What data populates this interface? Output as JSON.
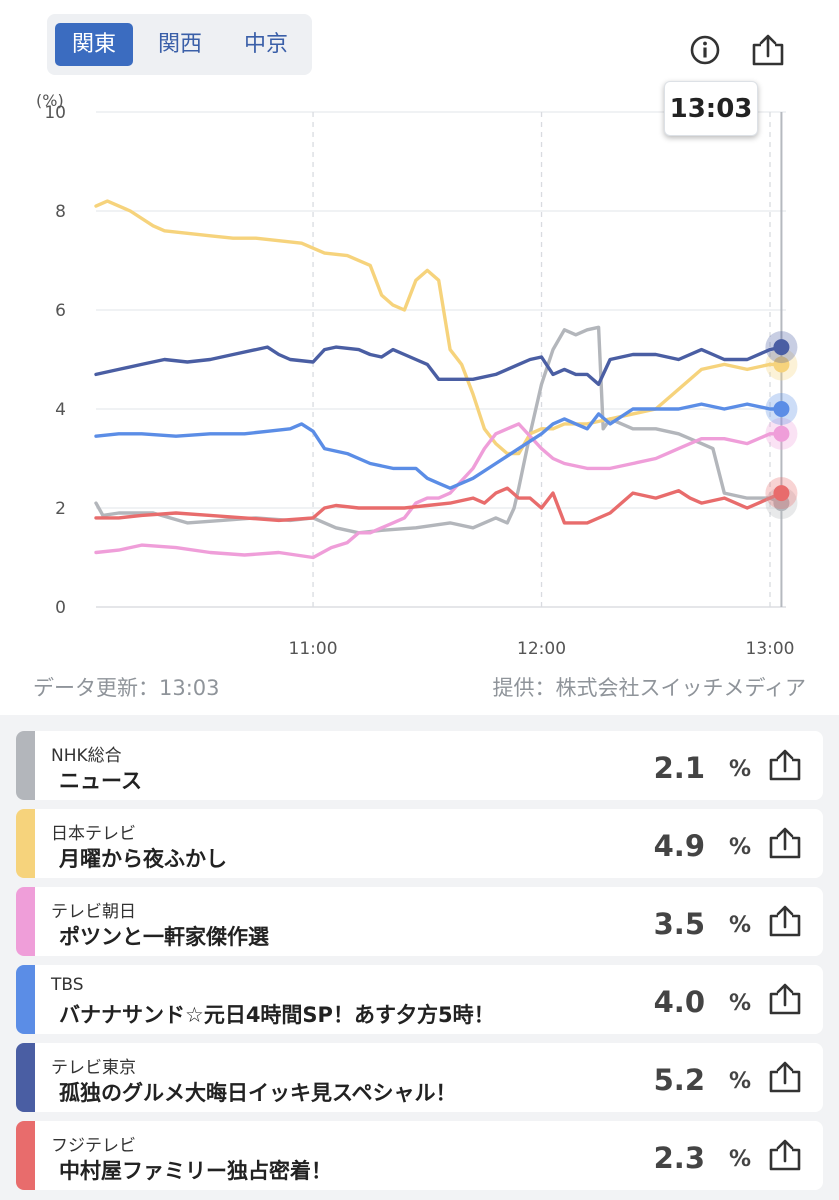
{
  "tabs": [
    {
      "label": "関東",
      "active": true
    },
    {
      "label": "関西",
      "active": false
    },
    {
      "label": "中京",
      "active": false
    }
  ],
  "toolbar": {
    "info_icon": "info-icon",
    "share_icon": "share-icon"
  },
  "tooltip": {
    "time": "13:03"
  },
  "footer": {
    "updated": "データ更新：13:03",
    "provider": "提供：株式会社スイッチメディア"
  },
  "chart_data": {
    "type": "line",
    "ylabel": "(%)",
    "ylim": [
      0,
      10
    ],
    "yticks": [
      "0",
      "2",
      "4",
      "6",
      "8",
      "10"
    ],
    "xlim": [
      10.05,
      13.07
    ],
    "xticks": [
      {
        "value": 11,
        "label": "11:00"
      },
      {
        "value": 12,
        "label": "12:00"
      },
      {
        "value": 13,
        "label": "13:00"
      }
    ],
    "grid": true,
    "cursor_x": 13.05,
    "series": [
      {
        "name": "NHK総合",
        "color": "#b3b6bb",
        "x": [
          10.05,
          10.08,
          10.15,
          10.3,
          10.45,
          10.6,
          10.75,
          10.9,
          11.0,
          11.1,
          11.2,
          11.3,
          11.45,
          11.6,
          11.7,
          11.8,
          11.85,
          11.88,
          11.9,
          11.95,
          12.0,
          12.05,
          12.1,
          12.15,
          12.2,
          12.25,
          12.27,
          12.3,
          12.4,
          12.5,
          12.6,
          12.7,
          12.75,
          12.8,
          12.9,
          13.0,
          13.05
        ],
        "values": [
          2.1,
          1.85,
          1.9,
          1.9,
          1.7,
          1.75,
          1.8,
          1.75,
          1.8,
          1.6,
          1.5,
          1.55,
          1.6,
          1.7,
          1.6,
          1.8,
          1.7,
          2.0,
          2.4,
          3.5,
          4.5,
          5.2,
          5.6,
          5.5,
          5.6,
          5.65,
          3.6,
          3.8,
          3.6,
          3.6,
          3.5,
          3.3,
          3.2,
          2.3,
          2.2,
          2.2,
          2.1
        ]
      },
      {
        "name": "日本テレビ",
        "color": "#f6d37c",
        "x": [
          10.05,
          10.1,
          10.2,
          10.3,
          10.35,
          10.45,
          10.55,
          10.65,
          10.75,
          10.85,
          10.95,
          11.05,
          11.15,
          11.25,
          11.3,
          11.35,
          11.4,
          11.45,
          11.5,
          11.55,
          11.6,
          11.65,
          11.7,
          11.75,
          11.8,
          11.85,
          11.9,
          11.95,
          12.0,
          12.05,
          12.1,
          12.2,
          12.3,
          12.5,
          12.7,
          12.8,
          12.9,
          13.0,
          13.05
        ],
        "values": [
          8.1,
          8.2,
          8.0,
          7.7,
          7.6,
          7.55,
          7.5,
          7.45,
          7.45,
          7.4,
          7.35,
          7.15,
          7.1,
          6.9,
          6.3,
          6.1,
          6.0,
          6.6,
          6.8,
          6.6,
          5.2,
          4.9,
          4.3,
          3.6,
          3.3,
          3.1,
          3.1,
          3.5,
          3.6,
          3.6,
          3.7,
          3.7,
          3.8,
          4.0,
          4.8,
          4.9,
          4.8,
          4.9,
          4.9
        ]
      },
      {
        "name": "テレビ朝日",
        "color": "#ef9ed9",
        "x": [
          10.05,
          10.15,
          10.25,
          10.4,
          10.55,
          10.7,
          10.85,
          11.0,
          11.08,
          11.15,
          11.2,
          11.25,
          11.3,
          11.35,
          11.4,
          11.45,
          11.5,
          11.55,
          11.6,
          11.7,
          11.75,
          11.8,
          11.85,
          11.9,
          12.0,
          12.05,
          12.1,
          12.2,
          12.3,
          12.4,
          12.5,
          12.55,
          12.6,
          12.7,
          12.8,
          12.9,
          13.0,
          13.05
        ],
        "values": [
          1.1,
          1.15,
          1.25,
          1.2,
          1.1,
          1.05,
          1.1,
          1.0,
          1.2,
          1.3,
          1.5,
          1.5,
          1.6,
          1.7,
          1.8,
          2.1,
          2.2,
          2.2,
          2.3,
          2.8,
          3.2,
          3.5,
          3.6,
          3.7,
          3.2,
          3.0,
          2.9,
          2.8,
          2.8,
          2.9,
          3.0,
          3.1,
          3.2,
          3.4,
          3.4,
          3.3,
          3.5,
          3.5
        ]
      },
      {
        "name": "TBS",
        "color": "#5b8de6",
        "x": [
          10.05,
          10.15,
          10.25,
          10.4,
          10.55,
          10.7,
          10.8,
          10.9,
          10.95,
          11.0,
          11.05,
          11.15,
          11.25,
          11.35,
          11.45,
          11.5,
          11.55,
          11.6,
          11.7,
          11.8,
          11.9,
          12.0,
          12.05,
          12.1,
          12.15,
          12.2,
          12.25,
          12.3,
          12.4,
          12.5,
          12.6,
          12.7,
          12.8,
          12.9,
          13.0,
          13.05
        ],
        "values": [
          3.45,
          3.5,
          3.5,
          3.45,
          3.5,
          3.5,
          3.55,
          3.6,
          3.7,
          3.55,
          3.2,
          3.1,
          2.9,
          2.8,
          2.8,
          2.6,
          2.5,
          2.4,
          2.6,
          2.9,
          3.2,
          3.5,
          3.7,
          3.8,
          3.7,
          3.6,
          3.9,
          3.7,
          4.0,
          4.0,
          4.0,
          4.1,
          4.0,
          4.1,
          4.0,
          4.0
        ]
      },
      {
        "name": "テレビ東京",
        "color": "#4a5ea3",
        "x": [
          10.05,
          10.15,
          10.25,
          10.35,
          10.45,
          10.55,
          10.65,
          10.75,
          10.8,
          10.85,
          10.9,
          11.0,
          11.05,
          11.1,
          11.2,
          11.25,
          11.3,
          11.35,
          11.4,
          11.45,
          11.5,
          11.55,
          11.6,
          11.7,
          11.8,
          11.85,
          11.9,
          11.95,
          12.0,
          12.05,
          12.1,
          12.15,
          12.2,
          12.25,
          12.3,
          12.4,
          12.5,
          12.6,
          12.7,
          12.75,
          12.8,
          12.9,
          13.0,
          13.05
        ],
        "values": [
          4.7,
          4.8,
          4.9,
          5.0,
          4.95,
          5.0,
          5.1,
          5.2,
          5.25,
          5.1,
          5.0,
          4.95,
          5.2,
          5.25,
          5.2,
          5.1,
          5.05,
          5.2,
          5.1,
          5.0,
          4.9,
          4.6,
          4.6,
          4.6,
          4.7,
          4.8,
          4.9,
          5.0,
          5.05,
          4.7,
          4.8,
          4.7,
          4.7,
          4.5,
          5.0,
          5.1,
          5.1,
          5.0,
          5.2,
          5.1,
          5.0,
          5.0,
          5.2,
          5.25
        ]
      },
      {
        "name": "フジテレビ",
        "color": "#e86c6c",
        "x": [
          10.05,
          10.15,
          10.25,
          10.4,
          10.55,
          10.7,
          10.85,
          11.0,
          11.05,
          11.1,
          11.2,
          11.3,
          11.4,
          11.5,
          11.6,
          11.7,
          11.75,
          11.8,
          11.85,
          11.9,
          11.95,
          12.0,
          12.05,
          12.1,
          12.2,
          12.3,
          12.4,
          12.5,
          12.6,
          12.65,
          12.7,
          12.8,
          12.9,
          13.0,
          13.05
        ],
        "values": [
          1.8,
          1.8,
          1.85,
          1.9,
          1.85,
          1.8,
          1.75,
          1.8,
          2.0,
          2.05,
          2.0,
          2.0,
          2.0,
          2.05,
          2.1,
          2.2,
          2.1,
          2.3,
          2.4,
          2.2,
          2.2,
          2.0,
          2.3,
          1.7,
          1.7,
          1.9,
          2.3,
          2.2,
          2.35,
          2.2,
          2.1,
          2.2,
          2.0,
          2.2,
          2.3
        ]
      }
    ]
  },
  "programs": [
    {
      "channel": "NHK総合",
      "title": "ニュース",
      "value": "2.1",
      "unit": "%",
      "color": "#b3b6bb"
    },
    {
      "channel": "日本テレビ",
      "title": "月曜から夜ふかし",
      "value": "4.9",
      "unit": "%",
      "color": "#f6d37c"
    },
    {
      "channel": "テレビ朝日",
      "title": "ポツンと一軒家傑作選",
      "value": "3.5",
      "unit": "%",
      "color": "#ef9ed9"
    },
    {
      "channel": "TBS",
      "title": "バナナサンド☆元日4時間SP！あす夕方5時！",
      "value": "4.0",
      "unit": "%",
      "color": "#5b8de6"
    },
    {
      "channel": "テレビ東京",
      "title": "孤独のグルメ大晦日イッキ見スペシャル！",
      "value": "5.2",
      "unit": "%",
      "color": "#4a5ea3"
    },
    {
      "channel": "フジテレビ",
      "title": "中村屋ファミリー独占密着！",
      "value": "2.3",
      "unit": "%",
      "color": "#e86c6c"
    }
  ]
}
